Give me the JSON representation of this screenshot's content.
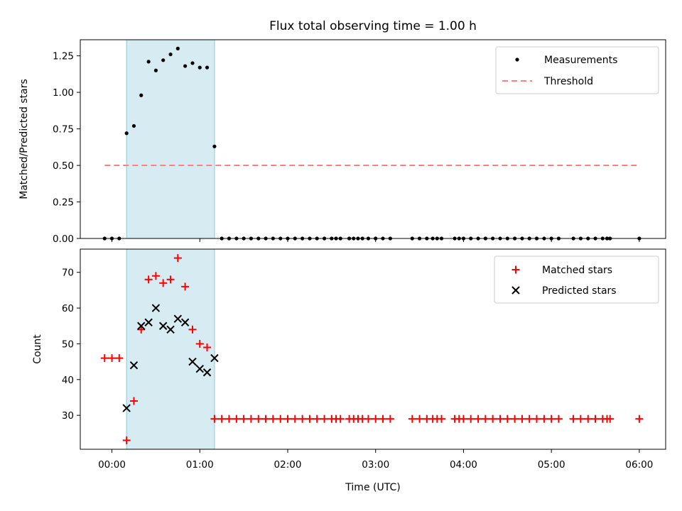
{
  "chart_data": {
    "type": "scatter",
    "title": "Flux total observing time = 1.00 h",
    "xlabel": "Time (UTC)",
    "x_ticks": [
      "00:00",
      "01:00",
      "02:00",
      "03:00",
      "04:00",
      "05:00",
      "06:00"
    ],
    "xlim_hours": [
      -0.36,
      6.3
    ],
    "highlight_span_hours": [
      0.167,
      1.167
    ],
    "colors": {
      "highlight": "#add8e6",
      "threshold": "#ff7f7f",
      "matched": "#ff0000",
      "predicted": "#000000",
      "measure": "#000000"
    },
    "top": {
      "ylabel": "Matched/Predicted stars",
      "ylim": [
        0,
        1.36
      ],
      "y_ticks": [
        "0.00",
        "0.25",
        "0.50",
        "0.75",
        "1.00",
        "1.25"
      ],
      "y_tick_values": [
        0,
        0.25,
        0.5,
        0.75,
        1.0,
        1.25
      ],
      "legend": [
        "Measurements",
        "Threshold"
      ],
      "threshold": {
        "value": 0.5,
        "x_range_hours": [
          -0.083,
          6.0
        ]
      },
      "measurements": {
        "x": [
          -0.083,
          0.0,
          0.083,
          0.167,
          0.25,
          0.333,
          0.417,
          0.5,
          0.583,
          0.667,
          0.75,
          0.833,
          0.917,
          1.0,
          1.083,
          1.167,
          1.25,
          1.333,
          1.417,
          1.5,
          1.583,
          1.667,
          1.75,
          1.833,
          1.917,
          2.0,
          2.083,
          2.167,
          2.25,
          2.333,
          2.417,
          2.5,
          2.55,
          2.6,
          2.7,
          2.75,
          2.8,
          2.85,
          2.917,
          3.0,
          3.083,
          3.167,
          3.417,
          3.5,
          3.583,
          3.65,
          3.7,
          3.75,
          3.9,
          3.95,
          4.0,
          4.083,
          4.167,
          4.25,
          4.333,
          4.417,
          4.5,
          4.583,
          4.667,
          4.75,
          4.833,
          4.917,
          5.0,
          5.083,
          5.25,
          5.333,
          5.417,
          5.5,
          5.583,
          5.633,
          5.667,
          6.0
        ],
        "y": [
          0,
          0,
          0,
          0.72,
          0.77,
          0.98,
          1.21,
          1.15,
          1.22,
          1.26,
          1.3,
          1.18,
          1.2,
          1.17,
          1.17,
          0.63,
          0,
          0,
          0,
          0,
          0,
          0,
          0,
          0,
          0,
          0,
          0,
          0,
          0,
          0,
          0,
          0,
          0,
          0,
          0,
          0,
          0,
          0,
          0,
          0,
          0,
          0,
          0,
          0,
          0,
          0,
          0,
          0,
          0,
          0,
          0,
          0,
          0,
          0,
          0,
          0,
          0,
          0,
          0,
          0,
          0,
          0,
          0,
          0,
          0,
          0,
          0,
          0,
          0,
          0,
          0,
          0
        ]
      }
    },
    "bottom": {
      "ylabel": "Count",
      "ylim": [
        20.5,
        76.5
      ],
      "y_ticks": [
        "30",
        "40",
        "50",
        "60",
        "70"
      ],
      "y_tick_values": [
        30,
        40,
        50,
        60,
        70
      ],
      "legend": [
        "Matched stars",
        "Predicted stars"
      ],
      "matched": {
        "x": [
          -0.083,
          0.0,
          0.083,
          0.167,
          0.25,
          0.333,
          0.417,
          0.5,
          0.583,
          0.667,
          0.75,
          0.833,
          0.917,
          1.0,
          1.083,
          1.167,
          1.25,
          1.333,
          1.417,
          1.5,
          1.583,
          1.667,
          1.75,
          1.833,
          1.917,
          2.0,
          2.083,
          2.167,
          2.25,
          2.333,
          2.417,
          2.5,
          2.55,
          2.6,
          2.7,
          2.75,
          2.8,
          2.85,
          2.917,
          3.0,
          3.083,
          3.167,
          3.417,
          3.5,
          3.583,
          3.65,
          3.7,
          3.75,
          3.9,
          3.95,
          4.0,
          4.083,
          4.167,
          4.25,
          4.333,
          4.417,
          4.5,
          4.583,
          4.667,
          4.75,
          4.833,
          4.917,
          5.0,
          5.083,
          5.25,
          5.333,
          5.417,
          5.5,
          5.583,
          5.633,
          5.667,
          6.0
        ],
        "y": [
          46,
          46,
          46,
          23,
          34,
          54,
          68,
          69,
          67,
          68,
          74,
          66,
          54,
          50,
          49,
          29,
          29,
          29,
          29,
          29,
          29,
          29,
          29,
          29,
          29,
          29,
          29,
          29,
          29,
          29,
          29,
          29,
          29,
          29,
          29,
          29,
          29,
          29,
          29,
          29,
          29,
          29,
          29,
          29,
          29,
          29,
          29,
          29,
          29,
          29,
          29,
          29,
          29,
          29,
          29,
          29,
          29,
          29,
          29,
          29,
          29,
          29,
          29,
          29,
          29,
          29,
          29,
          29,
          29,
          29,
          29,
          29
        ]
      },
      "predicted": {
        "x": [
          0.167,
          0.25,
          0.333,
          0.417,
          0.5,
          0.583,
          0.667,
          0.75,
          0.833,
          0.917,
          1.0,
          1.083,
          1.167
        ],
        "y": [
          32,
          44,
          55,
          56,
          60,
          55,
          54,
          57,
          56,
          45,
          43,
          42,
          46
        ]
      }
    }
  }
}
